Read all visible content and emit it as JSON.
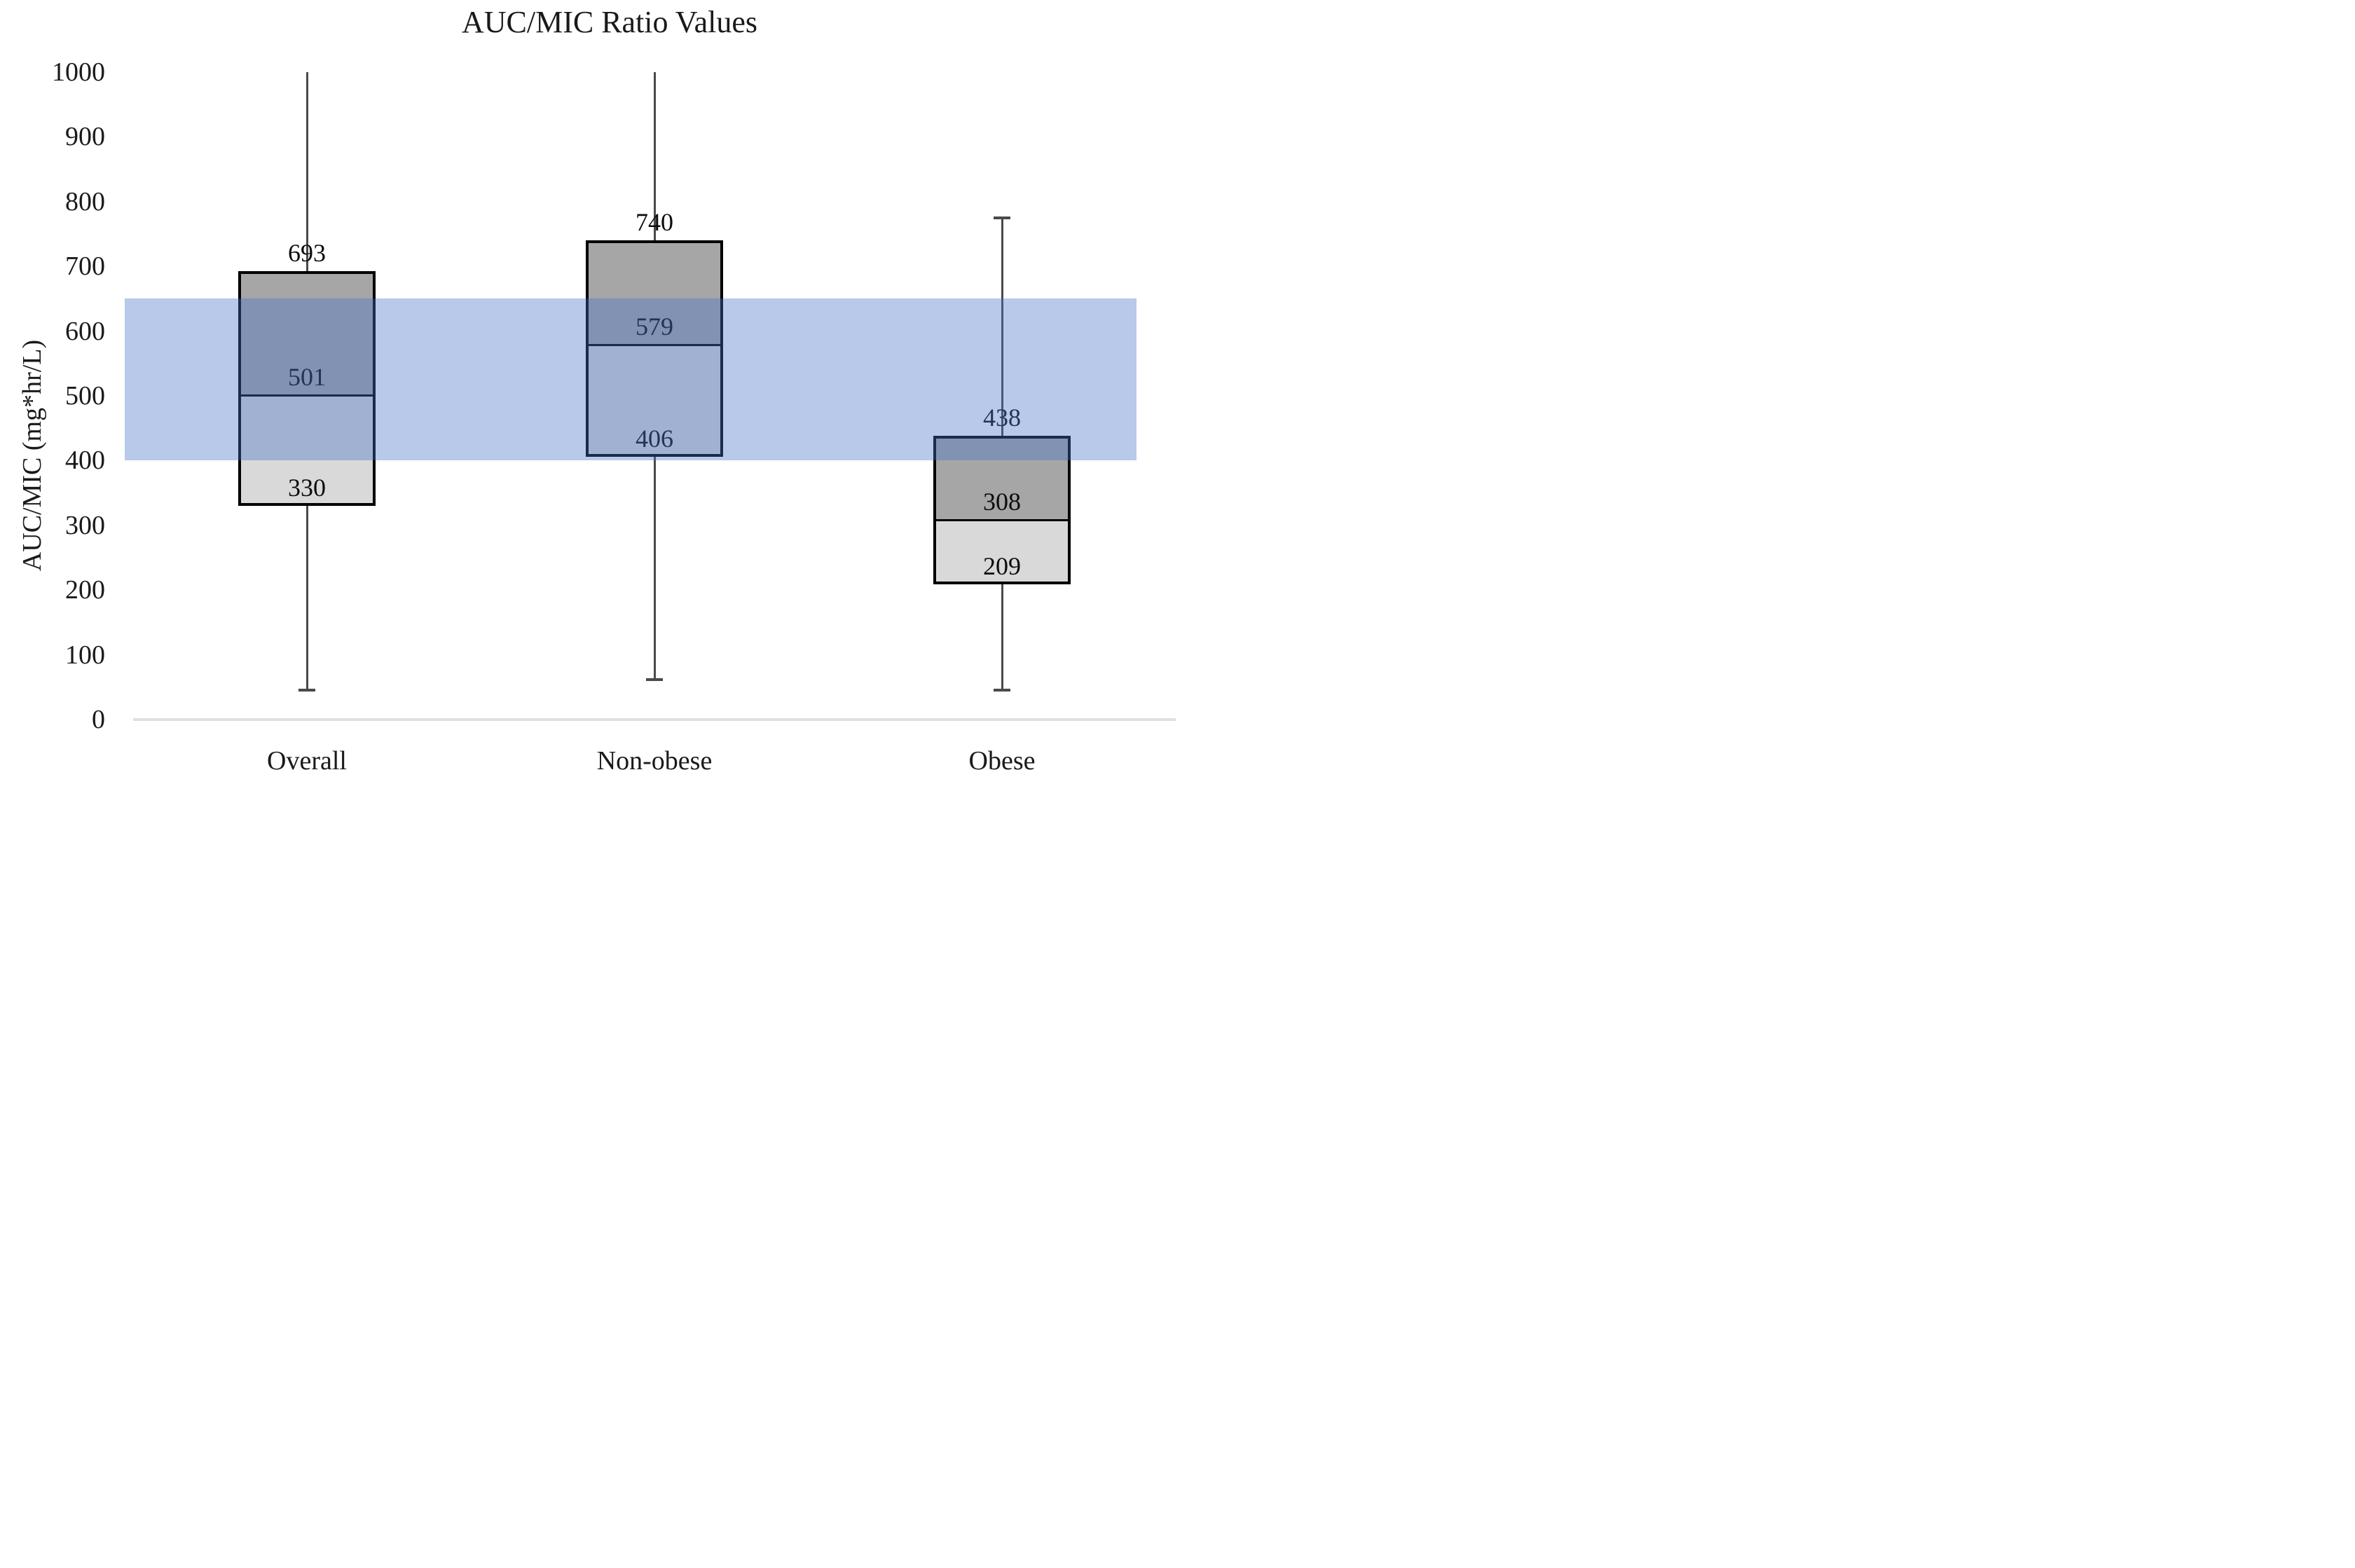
{
  "title": "AUC/MIC Ratio Values",
  "y_axis": {
    "label": "AUC/MIC (mg*hr/L)",
    "min": 0,
    "max": 1000,
    "step": 100,
    "ticks": [
      1000,
      900,
      800,
      700,
      600,
      500,
      400,
      300,
      200,
      100,
      0
    ]
  },
  "x_axis": {
    "categories": [
      "Overall",
      "Non-obese",
      "Obese"
    ]
  },
  "reference_band": {
    "low": 400,
    "high": 650,
    "color": "#4472C4",
    "opacity": 0.38
  },
  "colors": {
    "upper_box_fill": "#a6a6a6",
    "lower_box_fill": "#d9d9d9",
    "box_border": "#000000",
    "whisker": "#4a4a4a",
    "gridline": "#e0e0e0",
    "band": "#4472C4"
  },
  "chart_data": {
    "type": "boxplot",
    "title": "AUC/MIC Ratio Values",
    "ylabel": "AUC/MIC (mg*hr/L)",
    "ylim": [
      0,
      1000
    ],
    "grid": "zero-line-only",
    "legend": "none",
    "categories": [
      "Overall",
      "Non-obese",
      "Obese"
    ],
    "reference_band": {
      "low": 400,
      "high": 650
    },
    "series": [
      {
        "name": "Overall",
        "whisker_low": 45,
        "q1": 330,
        "median": 501,
        "q3": 693,
        "whisker_high": 1000,
        "whisker_high_capped": false,
        "whisker_low_capped": true,
        "labels": {
          "q3": "693",
          "median": "501",
          "q1": "330"
        }
      },
      {
        "name": "Non-obese",
        "whisker_low": 62,
        "q1": 406,
        "median": 579,
        "q3": 740,
        "whisker_high": 1000,
        "whisker_high_capped": false,
        "whisker_low_capped": true,
        "labels": {
          "q3": "740",
          "median": "579",
          "q1": "406"
        }
      },
      {
        "name": "Obese",
        "whisker_low": 45,
        "q1": 209,
        "median": 308,
        "q3": 438,
        "whisker_high": 775,
        "whisker_high_capped": true,
        "whisker_low_capped": true,
        "labels": {
          "q3": "438",
          "median": "308",
          "q1": "209"
        }
      }
    ]
  }
}
